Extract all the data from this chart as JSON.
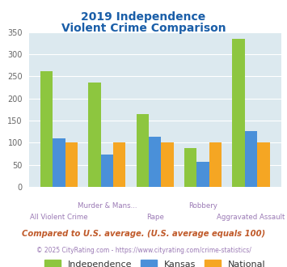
{
  "title_line1": "2019 Independence",
  "title_line2": "Violent Crime Comparison",
  "categories": [
    "All Violent Crime",
    "Murder & Mans...",
    "Rape",
    "Robbery",
    "Aggravated Assault"
  ],
  "independence": [
    262,
    236,
    165,
    87,
    335
  ],
  "kansas": [
    109,
    73,
    113,
    57,
    126
  ],
  "national": [
    100,
    100,
    100,
    100,
    100
  ],
  "colors": {
    "independence": "#8dc63f",
    "kansas": "#4a90d9",
    "national": "#f5a623"
  },
  "ylim": [
    0,
    350
  ],
  "yticks": [
    0,
    50,
    100,
    150,
    200,
    250,
    300,
    350
  ],
  "background_color": "#dce9ef",
  "title_color": "#1a5ea8",
  "axis_label_color": "#9b7ab5",
  "legend_labels": [
    "Independence",
    "Kansas",
    "National"
  ],
  "footer_text": "Compared to U.S. average. (U.S. average equals 100)",
  "copyright_text": "© 2025 CityRating.com - https://www.cityrating.com/crime-statistics/",
  "footer_color": "#c05a2a",
  "copyright_color": "#9b7ab5",
  "row1_labels": [
    "",
    "Murder & Mans...",
    "",
    "Robbery",
    ""
  ],
  "row2_labels": [
    "All Violent Crime",
    "",
    "Rape",
    "",
    "Aggravated Assault"
  ]
}
